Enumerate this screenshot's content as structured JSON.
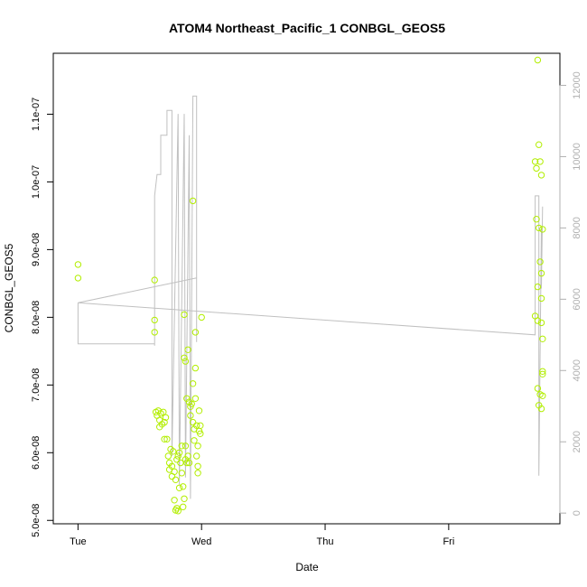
{
  "chart_data": {
    "type": "scatter",
    "title": "ATOM4 Northeast_Pacific_1 CONBGL_GEOS5",
    "xlabel": "Date",
    "ylabel": "CONBGL_GEOS5",
    "x_ticks": [
      "Tue",
      "Wed",
      "Thu",
      "Fri"
    ],
    "xlim": [
      -0.2,
      3.9
    ],
    "y_ticks": [
      "5.0e-08",
      "6.0e-08",
      "7.0e-08",
      "8.0e-08",
      "9.0e-08",
      "1.0e-07",
      "1.1e-07"
    ],
    "ylim": [
      4.95e-08,
      1.19e-07
    ],
    "y2_ticks": [
      "0",
      "2000",
      "4000",
      "6000",
      "8000",
      "10000",
      "12000"
    ],
    "y2lim": [
      -300,
      12900
    ],
    "grid": false,
    "colors": {
      "points": "#b2ee00",
      "line": "#c0c0c0",
      "axis": "#000000",
      "right_axis": "#b0b0b0"
    },
    "series": [
      {
        "type": "scatter",
        "axis": "left",
        "points": [
          [
            0.0,
            8.78e-08
          ],
          [
            0.0,
            8.58e-08
          ],
          [
            0.62,
            8.55e-08
          ],
          [
            0.62,
            7.96e-08
          ],
          [
            0.62,
            7.78e-08
          ],
          [
            0.63,
            6.6e-08
          ],
          [
            0.64,
            6.55e-08
          ],
          [
            0.65,
            6.62e-08
          ],
          [
            0.66,
            6.48e-08
          ],
          [
            0.67,
            6.58e-08
          ],
          [
            0.68,
            6.42e-08
          ],
          [
            0.69,
            6.6e-08
          ],
          [
            0.7,
            6.45e-08
          ],
          [
            0.71,
            6.52e-08
          ],
          [
            0.7,
            6.2e-08
          ],
          [
            0.72,
            6.2e-08
          ],
          [
            0.66,
            6.38e-08
          ],
          [
            0.73,
            5.95e-08
          ],
          [
            0.74,
            5.85e-08
          ],
          [
            0.75,
            6.05e-08
          ],
          [
            0.76,
            5.8e-08
          ],
          [
            0.77,
            6.02e-08
          ],
          [
            0.78,
            5.72e-08
          ],
          [
            0.79,
            5.6e-08
          ],
          [
            0.8,
            5.9e-08
          ],
          [
            0.81,
            5.95e-08
          ],
          [
            0.82,
            5.48e-08
          ],
          [
            0.78,
            5.3e-08
          ],
          [
            0.79,
            5.15e-08
          ],
          [
            0.8,
            5.18e-08
          ],
          [
            0.81,
            5.14e-08
          ],
          [
            0.82,
            6e-08
          ],
          [
            0.83,
            5.85e-08
          ],
          [
            0.84,
            5.7e-08
          ],
          [
            0.85,
            5.5e-08
          ],
          [
            0.86,
            5.32e-08
          ],
          [
            0.85,
            5.2e-08
          ],
          [
            0.86,
            8.04e-08
          ],
          [
            0.86,
            7.4e-08
          ],
          [
            0.87,
            7.35e-08
          ],
          [
            0.87,
            6.1e-08
          ],
          [
            0.87,
            5.9e-08
          ],
          [
            0.88,
            6.8e-08
          ],
          [
            0.89,
            7.52e-08
          ],
          [
            0.9,
            6.75e-08
          ],
          [
            0.91,
            6.68e-08
          ],
          [
            0.92,
            6.72e-08
          ],
          [
            0.91,
            6.55e-08
          ],
          [
            0.93,
            7.02e-08
          ],
          [
            0.93,
            6.45e-08
          ],
          [
            0.94,
            6.35e-08
          ],
          [
            0.94,
            6.18e-08
          ],
          [
            0.95,
            6.8e-08
          ],
          [
            0.95,
            7.25e-08
          ],
          [
            0.95,
            7.78e-08
          ],
          [
            0.96,
            6.4e-08
          ],
          [
            0.96,
            5.95e-08
          ],
          [
            0.97,
            6.1e-08
          ],
          [
            0.97,
            5.8e-08
          ],
          [
            0.97,
            5.7e-08
          ],
          [
            0.98,
            6.62e-08
          ],
          [
            0.98,
            6.32e-08
          ],
          [
            0.99,
            6.4e-08
          ],
          [
            0.99,
            6.28e-08
          ],
          [
            0.93,
            9.72e-08
          ],
          [
            1.0,
            8e-08
          ],
          [
            0.89,
            5.95e-08
          ],
          [
            0.9,
            5.85e-08
          ],
          [
            0.88,
            5.85e-08
          ],
          [
            0.84,
            6.1e-08
          ],
          [
            0.76,
            5.65e-08
          ],
          [
            0.74,
            5.75e-08
          ],
          [
            3.7,
            8.02e-08
          ],
          [
            3.71,
            9.45e-08
          ],
          [
            3.72,
            6.95e-08
          ],
          [
            3.73,
            6.7e-08
          ],
          [
            3.74,
            6.86e-08
          ],
          [
            3.75,
            6.65e-08
          ],
          [
            3.7,
            1.03e-07
          ],
          [
            3.71,
            1.02e-07
          ],
          [
            3.72,
            1.18e-07
          ],
          [
            3.73,
            1.055e-07
          ],
          [
            3.74,
            1.03e-07
          ],
          [
            3.75,
            1.01e-07
          ],
          [
            3.72,
            8.45e-08
          ],
          [
            3.73,
            9.32e-08
          ],
          [
            3.74,
            8.82e-08
          ],
          [
            3.75,
            8.65e-08
          ],
          [
            3.76,
            9.3e-08
          ],
          [
            3.75,
            8.28e-08
          ],
          [
            3.76,
            6.84e-08
          ],
          [
            3.72,
            7.95e-08
          ],
          [
            3.75,
            7.92e-08
          ],
          [
            3.76,
            7.68e-08
          ],
          [
            3.76,
            7.2e-08
          ],
          [
            3.76,
            7.16e-08
          ]
        ]
      },
      {
        "type": "line",
        "axis": "right",
        "name": "",
        "points": [
          [
            0.0,
            5900
          ],
          [
            0.0,
            4750
          ],
          [
            0.62,
            4750
          ],
          [
            0.62,
            4700
          ],
          [
            0.62,
            8900
          ],
          [
            0.64,
            9500
          ],
          [
            0.67,
            9500
          ],
          [
            0.67,
            10600
          ],
          [
            0.72,
            10600
          ],
          [
            0.72,
            11300
          ],
          [
            0.76,
            11300
          ],
          [
            0.76,
            1600
          ],
          [
            0.81,
            11200
          ],
          [
            0.82,
            800
          ],
          [
            0.86,
            11200
          ],
          [
            0.87,
            1000
          ],
          [
            0.9,
            10600
          ],
          [
            0.91,
            400
          ],
          [
            0.93,
            11700
          ],
          [
            0.96,
            11700
          ],
          [
            0.96,
            4800
          ],
          [
            0.96,
            6600
          ],
          [
            0.0,
            5900
          ],
          [
            3.7,
            5000
          ],
          [
            3.7,
            8900
          ],
          [
            3.73,
            8900
          ],
          [
            3.73,
            1050
          ],
          [
            3.75,
            8000
          ],
          [
            3.75,
            6300
          ],
          [
            3.76,
            8600
          ]
        ]
      }
    ]
  }
}
